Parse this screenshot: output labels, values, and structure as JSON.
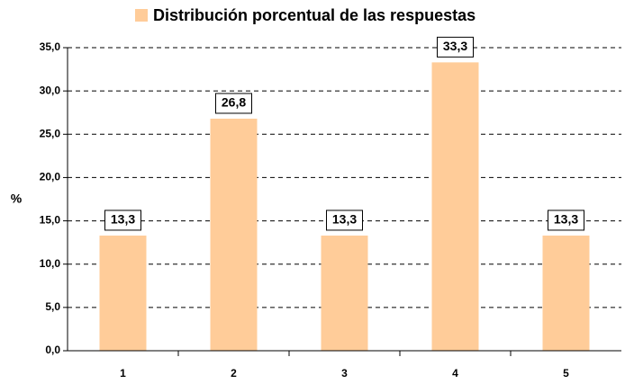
{
  "chart_data": {
    "type": "bar",
    "y_label": "%",
    "categories": [
      "1",
      "2",
      "3",
      "4",
      "5"
    ],
    "series": [
      {
        "name": "Distribución porcentual de las respuestas",
        "color": "#ffcc99",
        "values": [
          13.3,
          26.8,
          13.3,
          33.3,
          13.3
        ],
        "value_labels": [
          "13,3",
          "26,8",
          "13,3",
          "33,3",
          "13,3"
        ]
      }
    ],
    "ylim": [
      0,
      35
    ],
    "yticks": [
      {
        "value": 0,
        "label": "0,0"
      },
      {
        "value": 5,
        "label": "5,0"
      },
      {
        "value": 10,
        "label": "10,0"
      },
      {
        "value": 15,
        "label": "15,0"
      },
      {
        "value": 20,
        "label": "20,0"
      },
      {
        "value": 25,
        "label": "25,0"
      },
      {
        "value": 30,
        "label": "30,0"
      },
      {
        "value": 35,
        "label": "35,0"
      }
    ],
    "grid": true,
    "legend": "top"
  }
}
